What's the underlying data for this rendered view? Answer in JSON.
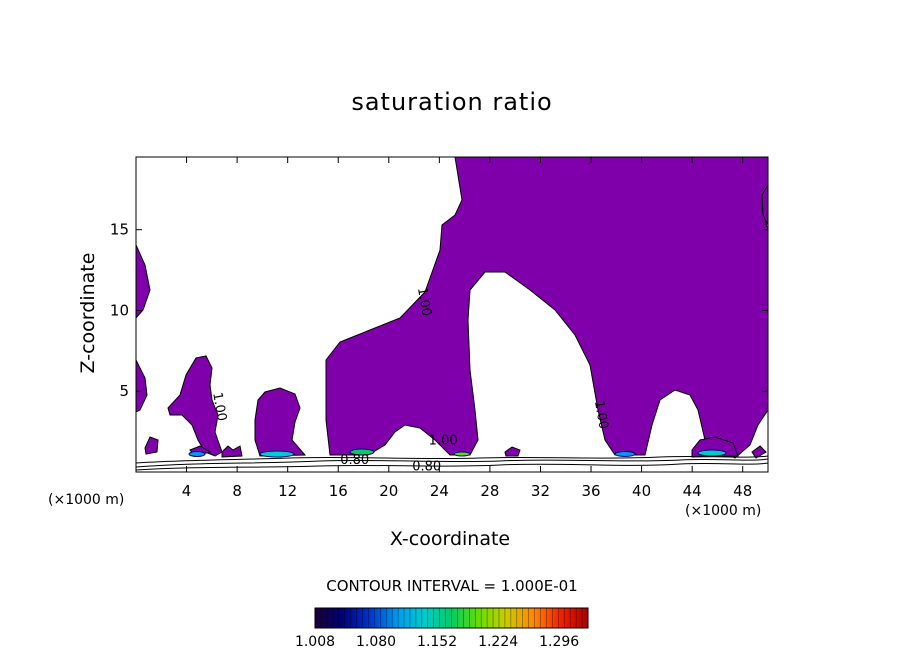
{
  "chart_data": {
    "type": "heatmap",
    "title": "saturation ratio",
    "xlabel": "X-coordinate",
    "ylabel": "Z-coordinate",
    "x_unit_label": "(×1000 m)",
    "x_ticks": [
      4,
      8,
      12,
      16,
      20,
      24,
      28,
      32,
      36,
      40,
      44,
      48
    ],
    "y_ticks": [
      5,
      10,
      15
    ],
    "xlim": [
      0,
      50
    ],
    "ylim": [
      0,
      19.5
    ],
    "fill_color": "#7f00aa",
    "contour_interval_text": "CONTOUR INTERVAL = 1.000E-01",
    "contour_labels": [
      {
        "text": "1.00",
        "x": 22.5,
        "y": 10.5
      },
      {
        "text": "1.00",
        "x": 6.3,
        "y": 4.0
      },
      {
        "text": "1.00",
        "x": 36.5,
        "y": 3.5
      },
      {
        "text": "1.00",
        "x": 24.3,
        "y": 1.7
      },
      {
        "text": "0.80",
        "x": 17.3,
        "y": 0.5
      },
      {
        "text": "0.80",
        "x": 23.0,
        "y": 0.1
      }
    ],
    "colorbar": {
      "min": 1.008,
      "max": 1.33,
      "tick_labels": [
        "1.008",
        "1.080",
        "1.152",
        "1.224",
        "1.296"
      ],
      "colors": [
        "#1a0038",
        "#00007a",
        "#0033cc",
        "#0099ee",
        "#00cccc",
        "#00cc66",
        "#66dd00",
        "#cccc00",
        "#ff8800",
        "#ee2200",
        "#aa0000"
      ]
    }
  }
}
